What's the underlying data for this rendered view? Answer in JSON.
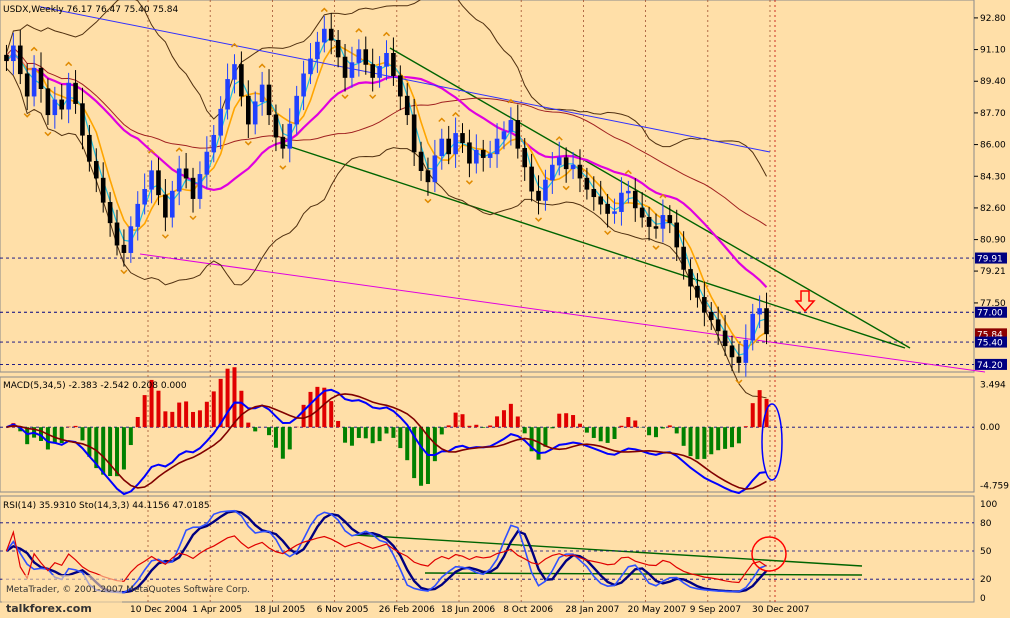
{
  "chart_data": [
    {
      "type": "candlestick",
      "panel": "price",
      "title": "USDX,Weekly  76.17 76.47 75.40 75.84",
      "symbol": "USDX",
      "timeframe": "Weekly",
      "ohlc_last": {
        "open": 76.17,
        "high": 76.47,
        "low": 75.4,
        "close": 75.84
      },
      "ylim": [
        73.9,
        93.6
      ],
      "y_ticks": [
        "92.80",
        "91.10",
        "89.40",
        "87.70",
        "86.00",
        "84.30",
        "82.60",
        "80.90",
        "79.21",
        "77.50"
      ],
      "price_labels": [
        {
          "text": "79.91",
          "value": 79.91,
          "bg": "#000080"
        },
        {
          "text": "77.00",
          "value": 77.0,
          "bg": "#000080"
        },
        {
          "text": "75.84",
          "value": 75.84,
          "bg": "#8b0000"
        },
        {
          "text": "75.40",
          "value": 75.4,
          "bg": "#000080"
        },
        {
          "text": "74.20",
          "value": 74.2,
          "bg": "#000080"
        }
      ],
      "horizontal_levels": [
        79.91,
        77.0,
        75.4,
        74.2
      ],
      "x_ticks": [
        "10 Dec 2004",
        "1 Apr 2005",
        "18 Jul 2005",
        "6 Nov 2005",
        "26 Feb 2006",
        "18 Jun 2006",
        "8 Oct 2006",
        "28 Jan 2007",
        "20 May 2007",
        "9 Sep 2007",
        "30 Dec 2007"
      ],
      "close_series": [
        90.5,
        91.3,
        89.8,
        88.6,
        90.1,
        89.0,
        87.6,
        88.4,
        87.9,
        89.3,
        88.2,
        86.5,
        85.1,
        84.2,
        82.9,
        81.8,
        80.6,
        80.2,
        81.6,
        82.8,
        83.6,
        84.6,
        83.3,
        82.1,
        83.5,
        84.7,
        84.2,
        83.1,
        84.4,
        85.6,
        86.5,
        87.9,
        89.5,
        90.3,
        88.6,
        87.1,
        88.3,
        89.2,
        87.6,
        86.4,
        85.8,
        87.1,
        88.6,
        89.8,
        90.6,
        91.5,
        92.2,
        91.6,
        90.7,
        89.6,
        90.4,
        91.1,
        90.3,
        89.6,
        90.2,
        90.9,
        89.7,
        88.6,
        87.6,
        85.6,
        84.6,
        84.0,
        85.4,
        86.3,
        85.5,
        86.6,
        86.1,
        85.0,
        85.7,
        85.3,
        85.5,
        86.3,
        86.7,
        87.3,
        85.8,
        84.8,
        83.5,
        83.0,
        84.1,
        84.9,
        85.3,
        84.7,
        84.9,
        84.2,
        83.6,
        83.2,
        82.8,
        82.3,
        82.4,
        83.4,
        83.5,
        82.6,
        82.1,
        81.6,
        81.5,
        82.2,
        81.8,
        80.5,
        79.3,
        78.4,
        77.8,
        77.0,
        76.6,
        76.0,
        75.2,
        74.6,
        74.3,
        75.5,
        76.9,
        77.2,
        75.84
      ]
    },
    {
      "type": "macd",
      "panel": "macd",
      "title": "MACD(5,34,5) -2.383 -2.542 0.208 0.000",
      "params": [
        5,
        34,
        5
      ],
      "values": {
        "main": -2.383,
        "signal": -2.542,
        "histogram": 0.208,
        "extra": 0.0
      },
      "y_ticks": [
        "3.494",
        "0.00",
        "-4.759"
      ],
      "ylim": [
        -4.9,
        3.7
      ]
    },
    {
      "type": "oscillator",
      "panel": "rsi-stoch",
      "title": "RSI(14) 35.9310 Sto(14,3,3) 44.1156 47.0185",
      "rsi": {
        "period": 14,
        "value": 35.931
      },
      "stoch": {
        "params": [
          14,
          3,
          3
        ],
        "main": 44.1156,
        "signal": 47.0185
      },
      "y_ticks": [
        "100",
        "80",
        "50",
        "20",
        "0"
      ],
      "ylim": [
        0,
        100
      ]
    }
  ],
  "watermark": {
    "copyright": "MetaTrader, © 2001-2007 MetaQuotes Software Corp.",
    "site": "talkforex.com"
  },
  "colors": {
    "background": "#ffdfa8",
    "candle_up": "#2040ff",
    "candle_down": "#000000",
    "trendline": "#006400",
    "ma_magenta": "#e000e0",
    "ma_blue": "#3030ff",
    "bollinger": "#503010",
    "ma_orange": "#ffa500",
    "macd_hist_up": "#e00000",
    "macd_hist_down": "#008000",
    "annotation_red": "#ff0000"
  }
}
